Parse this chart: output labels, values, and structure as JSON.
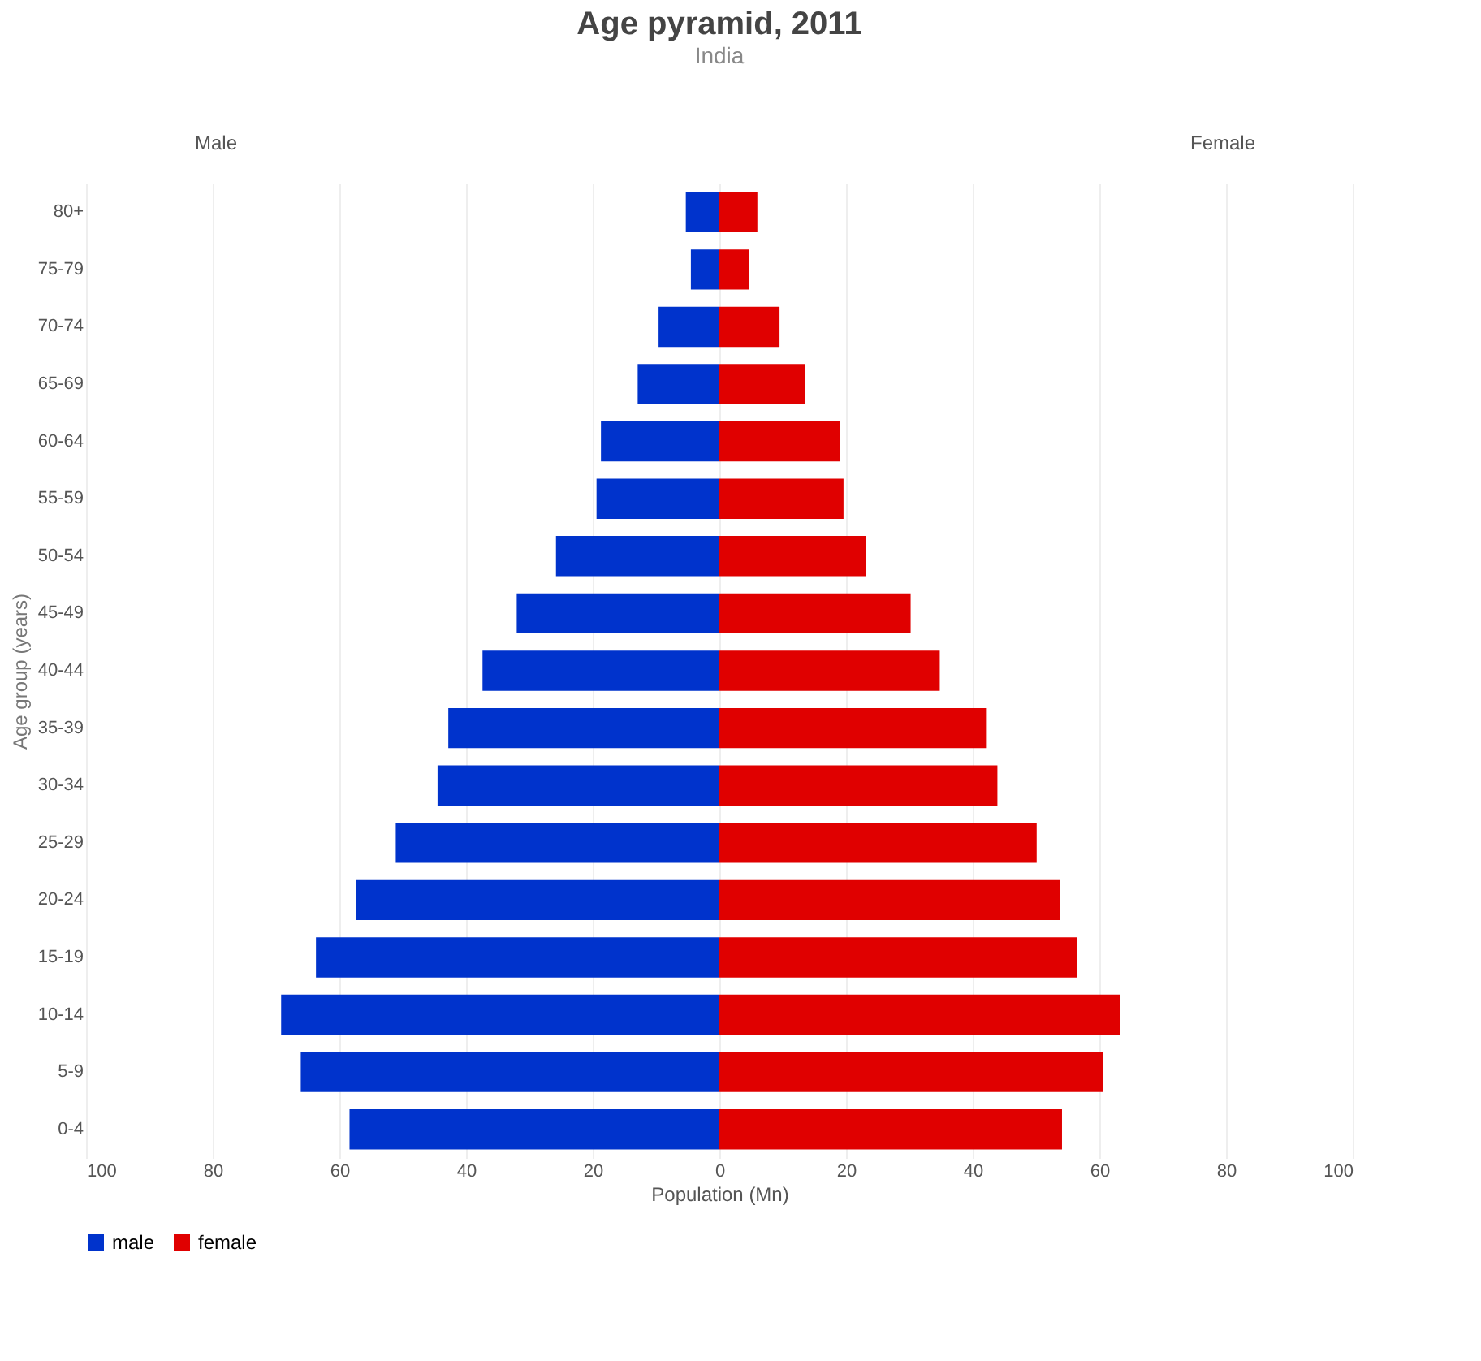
{
  "chart_data": {
    "type": "bar",
    "orientation": "horizontal",
    "title": "Age pyramid, 2011",
    "subtitle": "India",
    "xlabel": "Population (Mn)",
    "ylabel": "Age group (years)",
    "categories": [
      "80+",
      "75-79",
      "70-74",
      "65-69",
      "60-64",
      "55-59",
      "50-54",
      "45-49",
      "40-44",
      "35-39",
      "30-34",
      "25-29",
      "20-24",
      "15-19",
      "10-14",
      "5-9",
      "0-4"
    ],
    "series": [
      {
        "name": "male",
        "color": "#0033cc",
        "values": [
          -5.3,
          -4.5,
          -9.6,
          -12.9,
          -18.7,
          -19.4,
          -25.8,
          -32.0,
          -37.4,
          -42.8,
          -44.5,
          -51.1,
          -57.4,
          -63.7,
          -69.2,
          -66.1,
          -58.4
        ]
      },
      {
        "name": "female",
        "color": "#e00000",
        "values": [
          6.0,
          4.7,
          9.5,
          13.5,
          19.0,
          19.6,
          23.2,
          30.2,
          34.8,
          42.1,
          43.9,
          50.1,
          53.8,
          56.5,
          63.3,
          60.6,
          54.1
        ]
      }
    ],
    "xlim": [
      -100,
      100
    ],
    "xticks": [
      {
        "value": -100,
        "label": "100"
      },
      {
        "value": -80,
        "label": "80"
      },
      {
        "value": -60,
        "label": "60"
      },
      {
        "value": -40,
        "label": "40"
      },
      {
        "value": -20,
        "label": "20"
      },
      0,
      20,
      40,
      60,
      80,
      100
    ],
    "annotations": [
      "Male",
      "Female"
    ],
    "grid": "x",
    "legend": "bottom",
    "stacked": true
  }
}
